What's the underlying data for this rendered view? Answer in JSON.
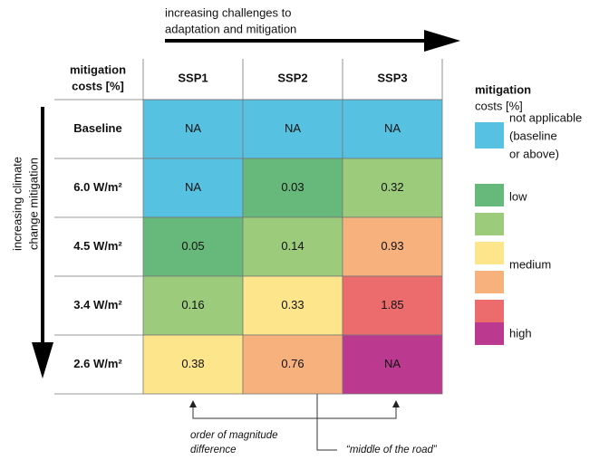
{
  "top_arrow": {
    "lines": [
      "increasing challenges to",
      "adaptation and mitigation"
    ]
  },
  "side_arrow": {
    "lines": [
      "increasing climate",
      "change mitigation"
    ]
  },
  "table": {
    "corner": [
      "mitigation",
      "costs [%]"
    ],
    "columns": [
      "SSP1",
      "SSP2",
      "SSP3"
    ],
    "rows": [
      {
        "label": "Baseline",
        "cells": [
          {
            "text": "NA",
            "color": "#57c1e1"
          },
          {
            "text": "NA",
            "color": "#57c1e1"
          },
          {
            "text": "NA",
            "color": "#57c1e1"
          }
        ]
      },
      {
        "label": "6.0 W/m²",
        "cells": [
          {
            "text": "NA",
            "color": "#57c1e1"
          },
          {
            "text": "0.03",
            "color": "#66b97a"
          },
          {
            "text": "0.32",
            "color": "#9ccb7b"
          }
        ]
      },
      {
        "label": "4.5 W/m²",
        "cells": [
          {
            "text": "0.05",
            "color": "#66b97a"
          },
          {
            "text": "0.14",
            "color": "#9ccb7b"
          },
          {
            "text": "0.93",
            "color": "#f6b17d"
          }
        ]
      },
      {
        "label": "3.4 W/m²",
        "cells": [
          {
            "text": "0.16",
            "color": "#9ccb7b"
          },
          {
            "text": "0.33",
            "color": "#fde58c"
          },
          {
            "text": "1.85",
            "color": "#ec6b6d"
          }
        ]
      },
      {
        "label": "2.6 W/m²",
        "cells": [
          {
            "text": "0.38",
            "color": "#fde58c"
          },
          {
            "text": "0.76",
            "color": "#f6b17d"
          },
          {
            "text": "NA",
            "color": "#bb3a8f"
          }
        ]
      }
    ]
  },
  "legend": {
    "title": [
      "mitigation",
      "costs [%]"
    ],
    "swatches": [
      "#57c1e1",
      "#66b97a",
      "#9ccb7b",
      "#fde58c",
      "#f6b17d",
      "#ec6b6d",
      "#bb3a8f"
    ],
    "labels": [
      {
        "lines": [
          "not applicable",
          "(baseline",
          "or above)"
        ]
      },
      {
        "lines": [
          "low"
        ]
      },
      {
        "lines": [
          "medium"
        ]
      },
      {
        "lines": [
          "high"
        ]
      }
    ]
  },
  "annotations": {
    "order": [
      "order of magnitude",
      "difference"
    ],
    "middle": "“middle of the road”"
  }
}
